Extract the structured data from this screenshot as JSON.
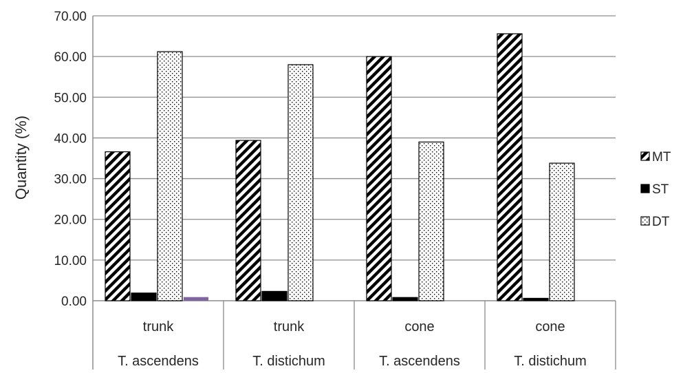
{
  "chart_data": {
    "type": "bar",
    "ylabel": "Quantity (%)",
    "ylim": [
      0,
      70
    ],
    "ytick_step": 10,
    "ytick_labels": [
      "0.00",
      "10.00",
      "20.00",
      "30.00",
      "40.00",
      "50.00",
      "60.00",
      "70.00"
    ],
    "categories": [
      {
        "part": "trunk",
        "species": "T. ascendens"
      },
      {
        "part": "trunk",
        "species": "T. distichum"
      },
      {
        "part": "cone",
        "species": "T. ascendens"
      },
      {
        "part": "cone",
        "species": "T. distichum"
      }
    ],
    "series": [
      {
        "name": "MT",
        "pattern": "diagonal",
        "values": [
          36.6,
          39.4,
          60.0,
          65.6
        ]
      },
      {
        "name": "ST",
        "pattern": "solid",
        "values": [
          1.9,
          2.3,
          0.8,
          0.6
        ]
      },
      {
        "name": "DT",
        "pattern": "dotted",
        "values": [
          61.2,
          58.0,
          39.0,
          33.8
        ]
      }
    ],
    "extra_bar": {
      "category_index": 0,
      "value": 0.9,
      "color": "#8064a2"
    },
    "grid": true,
    "legend_position": "right"
  }
}
